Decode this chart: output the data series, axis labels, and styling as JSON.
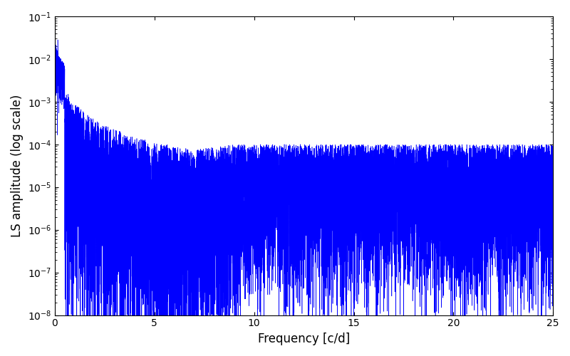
{
  "title": "",
  "xlabel": "Frequency [c/d]",
  "ylabel": "LS amplitude (log scale)",
  "xlim": [
    0,
    25
  ],
  "ylim": [
    1e-08,
    0.1
  ],
  "line_color": "#0000ff",
  "line_width": 0.4,
  "background_color": "#ffffff",
  "freq_max": 25.0,
  "n_points": 15000,
  "seed": 12345
}
